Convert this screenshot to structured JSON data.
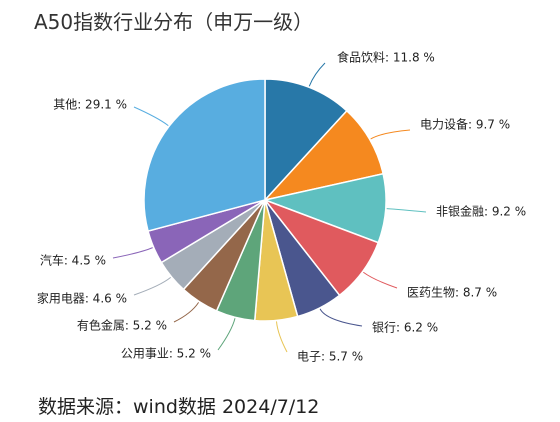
{
  "chart_data": {
    "type": "pie",
    "title": "A50指数行业分布（申万一级）",
    "slices": [
      {
        "name": "食品饮料",
        "value": 11.8,
        "label": "食品饮料: 11.8 %",
        "color": "#2878a8"
      },
      {
        "name": "电力设备",
        "value": 9.7,
        "label": "电力设备: 9.7 %",
        "color": "#f5891f"
      },
      {
        "name": "非银金融",
        "value": 9.2,
        "label": "非银金融: 9.2 %",
        "color": "#5fc0c0"
      },
      {
        "name": "医药生物",
        "value": 8.7,
        "label": "医药生物: 8.7 %",
        "color": "#e05a5e"
      },
      {
        "name": "银行",
        "value": 6.2,
        "label": "银行: 6.2 %",
        "color": "#4a568e"
      },
      {
        "name": "电子",
        "value": 5.7,
        "label": "电子: 5.7 %",
        "color": "#e8c555"
      },
      {
        "name": "公用事业",
        "value": 5.2,
        "label": "公用事业: 5.2 %",
        "color": "#5ea57a"
      },
      {
        "name": "有色金属",
        "value": 5.2,
        "label": "有色金属: 5.2 %",
        "color": "#94674a"
      },
      {
        "name": "家用电器",
        "value": 4.6,
        "label": "家用电器: 4.6 %",
        "color": "#a4adb8"
      },
      {
        "name": "汽车",
        "value": 4.5,
        "label": "汽车: 4.5 %",
        "color": "#8a65b8"
      },
      {
        "name": "其他",
        "value": 29.1,
        "label": "其他: 29.1 %",
        "color": "#58ade0"
      }
    ]
  },
  "source": "数据来源：wind数据  2024/7/12"
}
